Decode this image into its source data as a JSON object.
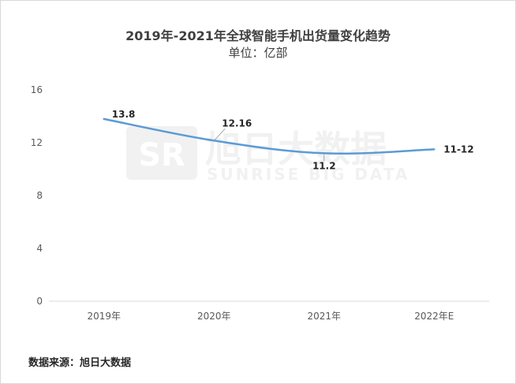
{
  "chart_data": {
    "type": "line",
    "title": "2019年-2021年全球智能手机出货量变化趋势",
    "subtitle": "单位：亿部",
    "categories": [
      "2019年",
      "2020年",
      "2021年",
      "2022年E"
    ],
    "series": [
      {
        "values": [
          13.8,
          12.16,
          11.2,
          11.5
        ],
        "color": "#5b9bd5"
      }
    ],
    "data_labels": [
      "13.8",
      "12.16",
      "11.2",
      "11-12"
    ],
    "y_ticks": [
      0,
      4,
      8,
      12,
      16
    ],
    "ylim": [
      0,
      16
    ],
    "grid": false,
    "legend": "none",
    "watermark": {
      "cn": "旭日大数据",
      "en": "SUNRISE BIG DATA",
      "logo": "SR"
    }
  },
  "source_text": "数据来源：旭日大数据"
}
